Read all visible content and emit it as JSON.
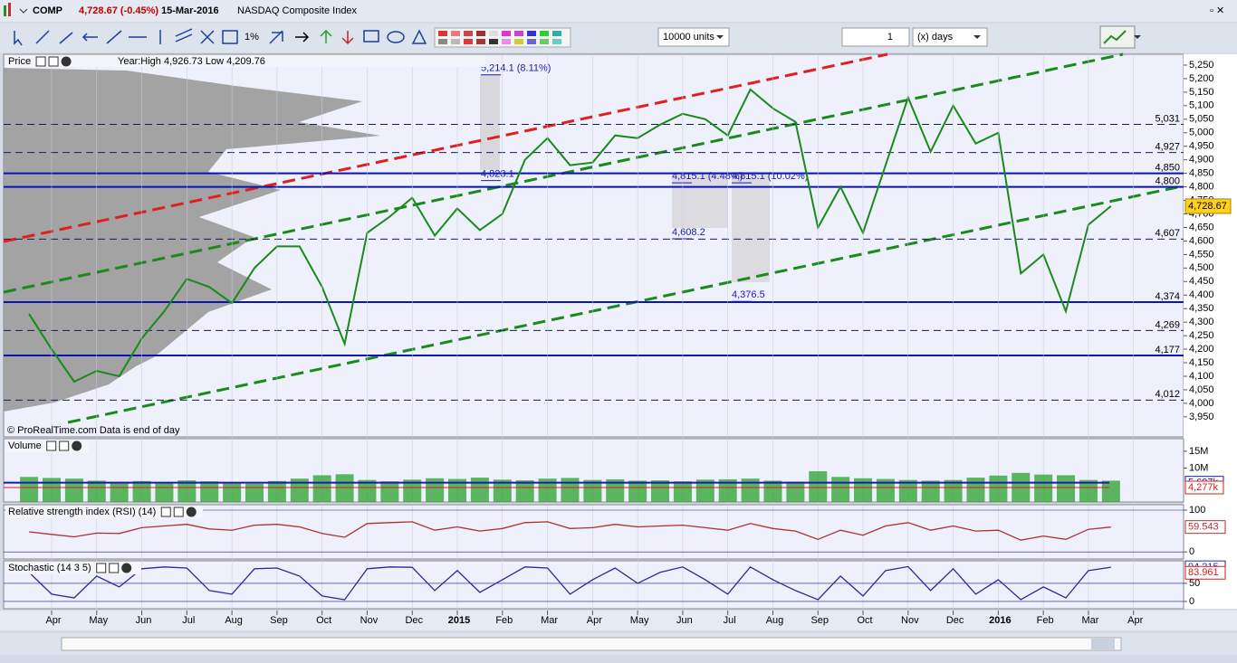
{
  "header": {
    "symbol": "COMP",
    "quote": "4,728.67 (-0.45%)",
    "date": "15-Mar-2016",
    "name": "NASDAQ Composite Index"
  },
  "toolbar": {
    "units": "10000 units",
    "period": "1",
    "period_unit": "(x) days"
  },
  "chart_data": [
    {
      "type": "line",
      "title": "Price",
      "subtitle": "Year:High 4,926.73 Low 4,209.76",
      "note": "© ProRealTime.com  Data is end of day",
      "categories": [
        null,
        "Apr",
        null,
        "May",
        null,
        "Jun",
        null,
        "Jul",
        null,
        "Aug",
        null,
        "Sep",
        null,
        "Oct",
        null,
        "Nov",
        null,
        "Dec",
        null,
        "2015",
        null,
        "Feb",
        null,
        "Mar",
        null,
        "Apr",
        null,
        "May",
        null,
        "Jun",
        null,
        "Jul",
        null,
        "Aug",
        null,
        "Sep",
        null,
        "Oct",
        null,
        "Nov",
        null,
        "Dec",
        null,
        "2016",
        null,
        "Feb",
        null,
        "Mar",
        null,
        "Apr"
      ],
      "values": [
        4330,
        4200,
        4080,
        4120,
        4100,
        4240,
        4340,
        4460,
        4430,
        4370,
        4500,
        4580,
        4580,
        4430,
        4220,
        4630,
        4690,
        4760,
        4620,
        4720,
        4640,
        4700,
        4900,
        4980,
        4880,
        4890,
        4990,
        4980,
        5030,
        5070,
        5050,
        4990,
        5160,
        5090,
        5040,
        4650,
        4800,
        4630,
        4880,
        5130,
        4930,
        5100,
        4960,
        5000,
        4480,
        4550,
        4340,
        4660,
        4728.67,
        null
      ],
      "color": "#1a8a1a",
      "ylim": [
        3876,
        5290
      ],
      "yticks": [
        {
          "value": 3950,
          "label": "3,950"
        },
        {
          "value": 4000,
          "label": "4,000"
        },
        {
          "value": 4050,
          "label": "4,050"
        },
        {
          "value": 4100,
          "label": "4,100"
        },
        {
          "value": 4150,
          "label": "4,150"
        },
        {
          "value": 4200,
          "label": "4,200"
        },
        {
          "value": 4250,
          "label": "4,250"
        },
        {
          "value": 4300,
          "label": "4,300"
        },
        {
          "value": 4350,
          "label": "4,350"
        },
        {
          "value": 4400,
          "label": "4,400"
        },
        {
          "value": 4450,
          "label": "4,450"
        },
        {
          "value": 4500,
          "label": "4,500"
        },
        {
          "value": 4550,
          "label": "4,550"
        },
        {
          "value": 4600,
          "label": "4,600"
        },
        {
          "value": 4650,
          "label": "4,650"
        },
        {
          "value": 4700,
          "label": "4,700"
        },
        {
          "value": 4750,
          "label": "4,750"
        },
        {
          "value": 4800,
          "label": "4,800"
        },
        {
          "value": 4850,
          "label": "4,850"
        },
        {
          "value": 4900,
          "label": "4,900"
        },
        {
          "value": 4950,
          "label": "4,950"
        },
        {
          "value": 5000,
          "label": "5,000"
        },
        {
          "value": 5050,
          "label": "5,050"
        },
        {
          "value": 5100,
          "label": "5,100"
        },
        {
          "value": 5150,
          "label": "5,150"
        },
        {
          "value": 5200,
          "label": "5,200"
        },
        {
          "value": 5250,
          "label": "5,250"
        }
      ],
      "levels": [
        {
          "value": 5031,
          "label": "5,031",
          "style": "dashed"
        },
        {
          "value": 4927,
          "label": "4,927",
          "style": "dashed"
        },
        {
          "value": 4850,
          "label": "4,850",
          "style": "solid"
        },
        {
          "value": 4800,
          "label": "4,800",
          "style": "solid"
        },
        {
          "value": 4607,
          "label": "4,607",
          "style": "dashed"
        },
        {
          "value": 4374,
          "label": "4,374",
          "style": "solid"
        },
        {
          "value": 4269,
          "label": "4,269",
          "style": "dashed"
        },
        {
          "value": 4177,
          "label": "4,177",
          "style": "solid"
        },
        {
          "value": 4012,
          "label": "4,012",
          "style": "dashed"
        }
      ],
      "annotations": [
        {
          "value": 5214.1,
          "label": "5,214.1 (8.11%)"
        },
        {
          "value": 4823.1,
          "label": "4,823.1"
        },
        {
          "value": 4815.1,
          "label": "4,815.1 (4.48%)"
        },
        {
          "value": 4815.1,
          "label": "4,815.1 (10.02%)"
        },
        {
          "value": 4608.2,
          "label": "4,608.2"
        },
        {
          "value": 4376.5,
          "label": "4,376.5"
        }
      ],
      "last": {
        "value": 4728.67,
        "label": "4,728.67"
      }
    },
    {
      "type": "bar",
      "title": "Volume",
      "color": "#2aa02a",
      "values": [
        7400000,
        7100000,
        6900000,
        6300000,
        6000000,
        6200000,
        5900000,
        6400000,
        6100000,
        5600000,
        5400000,
        6200000,
        6900000,
        7900000,
        8200000,
        6500000,
        6100000,
        6600000,
        7000000,
        6800000,
        7200000,
        6600000,
        6400000,
        6900000,
        7100000,
        6500000,
        6700000,
        6300000,
        6400000,
        6100000,
        6600000,
        6700000,
        6900000,
        6300000,
        6000000,
        9100000,
        7400000,
        7000000,
        6800000,
        6500000,
        6300000,
        6500000,
        7200000,
        7800000,
        8600000,
        8100000,
        7900000,
        6500000,
        6300000,
        null
      ],
      "ylim": [
        0,
        18700000
      ],
      "yticks": [
        {
          "value": 10000000,
          "label": "10M"
        },
        {
          "value": 15000000,
          "label": "15M"
        }
      ],
      "levels": [
        {
          "value": 5697000,
          "label": "5,697k"
        },
        {
          "value": 4277000,
          "label": "4,277k"
        }
      ]
    },
    {
      "type": "line",
      "title": "Relative strength index (RSI) (14)",
      "color": "#b03030",
      "values": [
        48,
        42,
        36,
        45,
        44,
        58,
        62,
        66,
        55,
        52,
        64,
        66,
        60,
        44,
        35,
        68,
        70,
        72,
        52,
        60,
        50,
        56,
        70,
        72,
        56,
        58,
        66,
        60,
        62,
        64,
        58,
        52,
        68,
        56,
        50,
        30,
        52,
        40,
        62,
        70,
        52,
        62,
        50,
        52,
        28,
        38,
        30,
        54,
        59.543,
        null
      ],
      "ylim": [
        -17,
        113
      ],
      "yticks": [
        0,
        100
      ],
      "last": 59.543
    },
    {
      "type": "line",
      "title": "Stochastic (14 3 5)",
      "color": "#2a2a9a",
      "values": [
        80,
        20,
        10,
        70,
        40,
        90,
        95,
        92,
        30,
        20,
        90,
        92,
        70,
        15,
        5,
        90,
        95,
        94,
        30,
        85,
        25,
        60,
        95,
        92,
        20,
        60,
        92,
        50,
        80,
        95,
        60,
        20,
        95,
        60,
        30,
        5,
        70,
        15,
        85,
        96,
        30,
        90,
        20,
        60,
        5,
        40,
        10,
        85,
        94.215,
        null
      ],
      "ylim": [
        -20,
        112
      ],
      "yticks": [
        0,
        50
      ],
      "last": 94.215,
      "signal": 83.961
    }
  ]
}
